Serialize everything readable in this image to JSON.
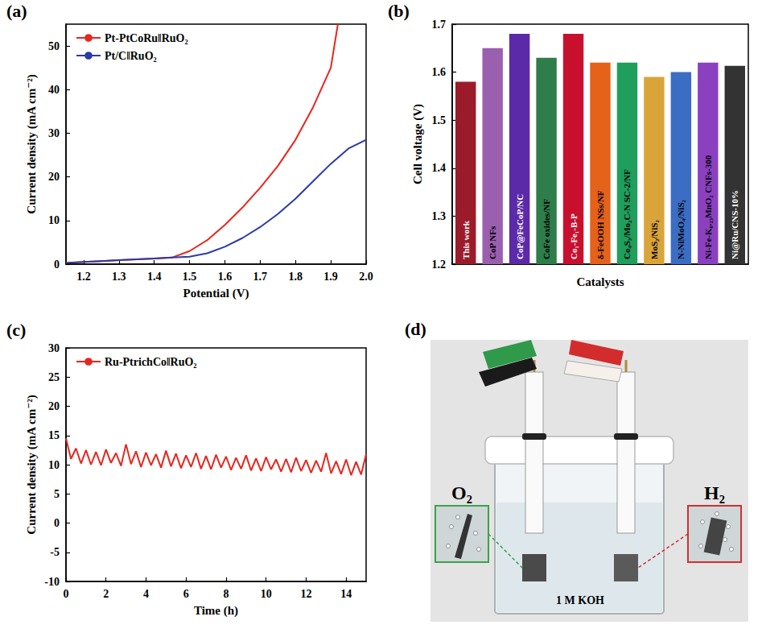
{
  "chart_data": [
    {
      "panel_label": "(a)",
      "type": "line",
      "x_label": "Potential (V)",
      "y_label": "Current density (mA cm⁻²)",
      "xlim": [
        1.15,
        2.0
      ],
      "xticks": [
        1.2,
        1.3,
        1.4,
        1.5,
        1.6,
        1.7,
        1.8,
        1.9,
        {
          "value": 2,
          "label": "2.0"
        }
      ],
      "ylim": [
        0,
        55
      ],
      "yticks": [
        0,
        10,
        20,
        30,
        40,
        50
      ],
      "grid": false,
      "legend": "upper left",
      "series": [
        {
          "name": "Pt-PtCoRu‖RuO₂",
          "color": "#e8261e",
          "x": [
            1.15,
            1.2,
            1.25,
            1.3,
            1.35,
            1.4,
            1.45,
            1.5,
            1.55,
            1.6,
            1.65,
            1.7,
            1.75,
            1.8,
            1.85,
            1.9,
            1.92
          ],
          "values": [
            0.3,
            0.5,
            0.7,
            0.9,
            1.1,
            1.3,
            1.5,
            3.0,
            5.5,
            9.0,
            13.0,
            17.5,
            22.5,
            28.5,
            36.0,
            45.0,
            55.0
          ]
        },
        {
          "name": "Pt/C‖RuO₂",
          "color": "#2a3aa8",
          "x": [
            1.15,
            1.2,
            1.25,
            1.3,
            1.35,
            1.4,
            1.45,
            1.5,
            1.55,
            1.6,
            1.65,
            1.7,
            1.75,
            1.8,
            1.85,
            1.9,
            1.95,
            2.0
          ],
          "values": [
            0.3,
            0.5,
            0.7,
            0.9,
            1.1,
            1.3,
            1.5,
            1.7,
            2.5,
            4.0,
            6.0,
            8.5,
            11.5,
            15.0,
            19.0,
            23.0,
            26.5,
            28.5
          ]
        }
      ]
    },
    {
      "panel_label": "(b)",
      "type": "bar",
      "x_label": "Catalysts",
      "y_label": "Cell voltage (V)",
      "categories": [
        "This work",
        "CoP NFs",
        "CoP@FeCoP/NC",
        "CoFe oxides/NF",
        "Co₁-Fe₁-B-P",
        "δ-FeOOH NSs/NF",
        "Co₄S₃/Mo₂C-N SC-2/NF",
        "MoS₂/NiS₂",
        "N-NiMoO₄/NiS₂",
        "Ni-Fe-K₀.₂₃MnO₂ CNFs-300",
        "Ni@Ru/CNS-10%"
      ],
      "values": [
        1.58,
        1.65,
        1.68,
        1.63,
        1.68,
        1.62,
        1.62,
        1.59,
        1.6,
        1.62,
        1.613
      ],
      "colors": [
        "#9b1b2a",
        "#9b5fb0",
        "#5b2aa8",
        "#2e7d4a",
        "#c8102e",
        "#e5621a",
        "#1f9e5c",
        "#d9a43a",
        "#3b6dc4",
        "#8b40c0",
        "#333333"
      ],
      "ylim": [
        1.2,
        1.7
      ],
      "yticks": [
        1.2,
        1.3,
        1.4,
        1.5,
        1.6,
        1.7
      ],
      "grid": false,
      "tick_labels": "y"
    },
    {
      "panel_label": "(c)",
      "type": "line",
      "x_label": "Time (h)",
      "y_label": "Current density (mA cm⁻²)",
      "xlim": [
        0,
        15
      ],
      "xticks": [
        0,
        2,
        4,
        6,
        8,
        10,
        12,
        14
      ],
      "ylim": [
        -10,
        30
      ],
      "yticks": [
        -10,
        -5,
        0,
        5,
        10,
        15,
        20,
        25,
        30
      ],
      "grid": false,
      "legend": "upper left",
      "series": [
        {
          "name": "Ru-PtrichCo‖RuO₂",
          "color": "#e8261e",
          "x": [
            0,
            0.25,
            0.5,
            0.75,
            1,
            1.25,
            1.5,
            1.75,
            2,
            2.25,
            2.5,
            2.75,
            3,
            3.25,
            3.5,
            3.75,
            4,
            4.25,
            4.5,
            4.75,
            5,
            5.25,
            5.5,
            5.75,
            6,
            6.25,
            6.5,
            6.75,
            7,
            7.25,
            7.5,
            7.75,
            8,
            8.25,
            8.5,
            8.75,
            9,
            9.25,
            9.5,
            9.75,
            10,
            10.25,
            10.5,
            10.75,
            11,
            11.25,
            11.5,
            11.75,
            12,
            12.25,
            12.5,
            12.75,
            13,
            13.25,
            13.5,
            13.75,
            14,
            14.25,
            14.5,
            14.75,
            15
          ],
          "values": [
            14.5,
            11.0,
            12.8,
            10.2,
            12.5,
            10.0,
            12.2,
            9.9,
            12.6,
            10.3,
            12.0,
            9.8,
            13.5,
            10.1,
            12.3,
            9.6,
            12.1,
            9.9,
            11.8,
            9.5,
            12.4,
            9.7,
            11.9,
            9.4,
            11.6,
            9.6,
            12.0,
            9.3,
            11.5,
            9.2,
            11.7,
            9.5,
            11.4,
            9.1,
            11.2,
            9.3,
            11.6,
            9.0,
            11.1,
            8.9,
            11.3,
            9.2,
            10.9,
            8.8,
            11.0,
            8.7,
            11.2,
            8.9,
            10.8,
            8.6,
            10.7,
            8.8,
            12.0,
            8.5,
            10.6,
            8.4,
            10.9,
            8.2,
            10.5,
            8.3,
            11.8
          ]
        }
      ]
    }
  ],
  "photo": {
    "panel_label": "(d)",
    "gas_labels": [
      "O₂",
      "H₂"
    ],
    "electrolyte": "1 M KOH"
  }
}
